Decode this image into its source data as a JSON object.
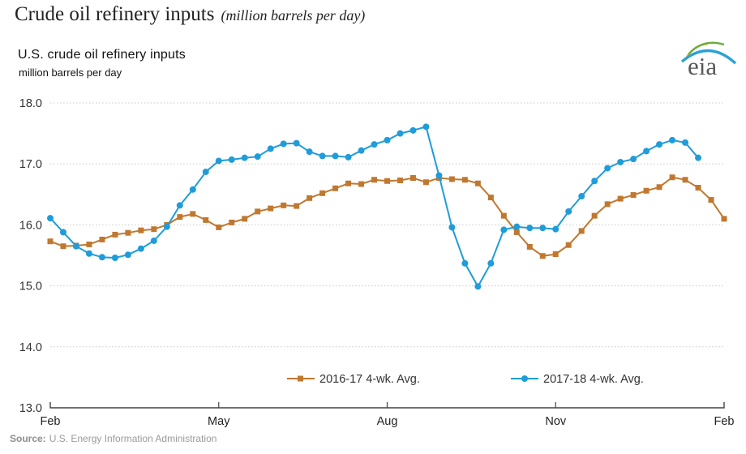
{
  "page": {
    "title": "Crude oil refinery inputs",
    "title_note": "(million barrels per day)"
  },
  "chart": {
    "title": "U.S. crude oil refinery inputs",
    "units": "million barrels per day",
    "source_label": "Source:",
    "source_text": "U.S. Energy Information Administration"
  },
  "logo": {
    "text": "eia"
  },
  "chart_data": {
    "type": "line",
    "title": "U.S. crude oil refinery inputs",
    "ylabel": "million barrels per day",
    "ylim": [
      13.0,
      18.0
    ],
    "yticks": [
      13.0,
      14.0,
      15.0,
      16.0,
      17.0,
      18.0
    ],
    "grid": "dotted-horizontal",
    "legend_position": "bottom",
    "x_axis": {
      "unit": "weeks",
      "total_weeks": 52,
      "month_ticks": [
        {
          "label": "Feb",
          "week": 0
        },
        {
          "label": "May",
          "week": 13
        },
        {
          "label": "Aug",
          "week": 26
        },
        {
          "label": "Nov",
          "week": 39
        },
        {
          "label": "Feb",
          "week": 52
        }
      ]
    },
    "colors": {
      "series_2016_17": "#c0782f",
      "series_2017_18": "#1f9cd9",
      "grid": "#c9c9c9",
      "axis": "#444444"
    },
    "series": [
      {
        "name": "2016-17  4-wk. Avg.",
        "color": "#c0782f",
        "marker": "square",
        "start_week": 0,
        "values": [
          15.73,
          15.65,
          15.66,
          15.68,
          15.76,
          15.84,
          15.87,
          15.91,
          15.93,
          16.0,
          16.13,
          16.18,
          16.08,
          15.96,
          16.04,
          16.1,
          16.22,
          16.27,
          16.32,
          16.31,
          16.44,
          16.52,
          16.6,
          16.68,
          16.67,
          16.74,
          16.72,
          16.73,
          16.77,
          16.7,
          16.77,
          16.75,
          16.74,
          16.68,
          16.45,
          16.15,
          15.88,
          15.64,
          15.49,
          15.52,
          15.67,
          15.9,
          16.15,
          16.34,
          16.43,
          16.49,
          16.56,
          16.62,
          16.78,
          16.74,
          16.61,
          16.41,
          16.1
        ]
      },
      {
        "name": "2017-18  4-wk. Avg.",
        "color": "#1f9cd9",
        "marker": "circle",
        "start_week": 0,
        "values": [
          16.11,
          15.88,
          15.65,
          15.53,
          15.47,
          15.46,
          15.51,
          15.61,
          15.74,
          15.97,
          16.32,
          16.58,
          16.87,
          17.05,
          17.07,
          17.1,
          17.12,
          17.25,
          17.33,
          17.34,
          17.2,
          17.13,
          17.13,
          17.11,
          17.22,
          17.32,
          17.39,
          17.5,
          17.55,
          17.61,
          16.81,
          15.96,
          15.37,
          14.99,
          15.37,
          15.92,
          15.97,
          15.95,
          15.95,
          15.93,
          16.22,
          16.47,
          16.72,
          16.93,
          17.03,
          17.08,
          17.21,
          17.32,
          17.39,
          17.35,
          17.1
        ]
      }
    ]
  }
}
